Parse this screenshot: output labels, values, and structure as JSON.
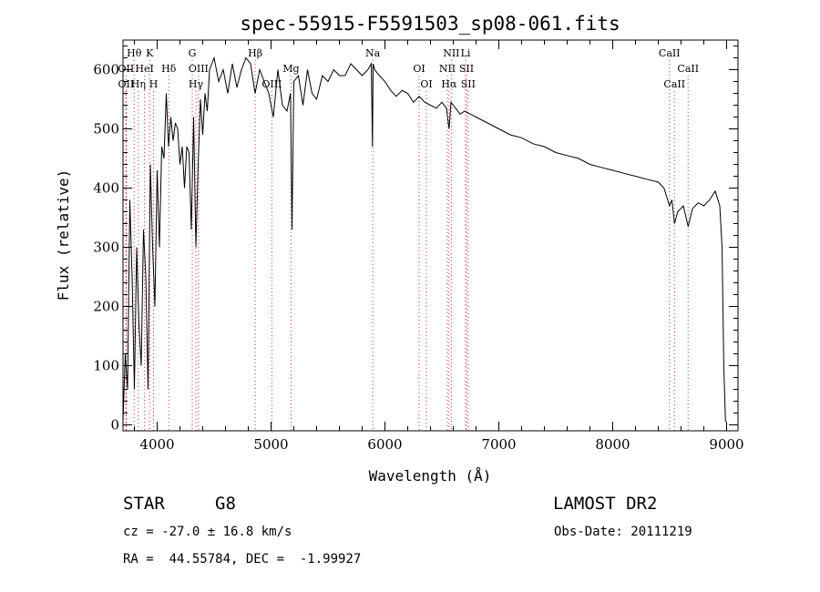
{
  "chart_data": {
    "type": "line",
    "title": "spec-55915-F5591503_sp08-061.fits",
    "xlabel": "Wavelength (Å)",
    "ylabel": "Flux (relative)",
    "xlim": [
      3700,
      9100
    ],
    "ylim": [
      -10,
      650
    ],
    "x_ticks": [
      4000,
      5000,
      6000,
      7000,
      8000,
      9000
    ],
    "y_ticks": [
      0,
      100,
      200,
      300,
      400,
      500,
      600
    ],
    "grid": false,
    "series": [
      {
        "x": [
          3700,
          3720,
          3740,
          3760,
          3780,
          3800,
          3820,
          3840,
          3860,
          3880,
          3900,
          3920,
          3940,
          3960,
          3980,
          4000,
          4020,
          4040,
          4060,
          4080,
          4100,
          4120,
          4140,
          4160,
          4180,
          4200,
          4220,
          4240,
          4260,
          4280,
          4300,
          4320,
          4340,
          4360,
          4380,
          4400,
          4420,
          4440,
          4460,
          4480,
          4500,
          4540,
          4580,
          4620,
          4660,
          4700,
          4740,
          4780,
          4820,
          4860,
          4900,
          4940,
          4980,
          5020,
          5060,
          5100,
          5140,
          5170,
          5184,
          5200,
          5240,
          5280,
          5320,
          5360,
          5400,
          5450,
          5500,
          5550,
          5600,
          5650,
          5700,
          5750,
          5800,
          5850,
          5880,
          5890,
          5896,
          5910,
          5950,
          6000,
          6050,
          6100,
          6150,
          6200,
          6250,
          6300,
          6350,
          6400,
          6450,
          6500,
          6540,
          6563,
          6580,
          6620,
          6660,
          6700,
          6750,
          6800,
          6900,
          7000,
          7100,
          7200,
          7300,
          7400,
          7500,
          7600,
          7700,
          7800,
          7900,
          8000,
          8100,
          8200,
          8300,
          8400,
          8450,
          8498,
          8520,
          8542,
          8570,
          8620,
          8662,
          8700,
          8750,
          8800,
          8850,
          8900,
          8940,
          8960,
          8975,
          8990
        ],
        "y": [
          5,
          120,
          60,
          380,
          250,
          60,
          300,
          170,
          100,
          330,
          250,
          60,
          440,
          300,
          200,
          430,
          300,
          470,
          450,
          560,
          470,
          520,
          480,
          510,
          500,
          440,
          470,
          400,
          470,
          460,
          330,
          520,
          300,
          440,
          550,
          490,
          560,
          530,
          600,
          610,
          620,
          580,
          600,
          560,
          610,
          570,
          600,
          620,
          610,
          560,
          600,
          580,
          560,
          520,
          600,
          540,
          530,
          560,
          330,
          580,
          590,
          540,
          600,
          560,
          550,
          590,
          580,
          600,
          590,
          590,
          610,
          600,
          590,
          600,
          610,
          470,
          610,
          600,
          590,
          580,
          565,
          555,
          565,
          560,
          545,
          555,
          545,
          540,
          535,
          545,
          535,
          500,
          545,
          535,
          525,
          530,
          525,
          520,
          510,
          500,
          490,
          485,
          475,
          470,
          460,
          455,
          450,
          440,
          435,
          430,
          425,
          420,
          415,
          410,
          400,
          370,
          380,
          340,
          360,
          370,
          335,
          365,
          375,
          370,
          380,
          395,
          370,
          300,
          100,
          5
        ]
      }
    ],
    "line_markers": [
      {
        "name": "Hθ",
        "x": 3798,
        "row": 0
      },
      {
        "name": "K",
        "x": 3934,
        "row": 0
      },
      {
        "name": "G",
        "x": 4308,
        "row": 0
      },
      {
        "name": "Hβ",
        "x": 4861,
        "row": 0
      },
      {
        "name": "Na",
        "x": 5893,
        "row": 0
      },
      {
        "name": "NII",
        "x": 6583,
        "row": 0
      },
      {
        "name": "Li",
        "x": 6708,
        "row": 0
      },
      {
        "name": "CaII",
        "x": 8498,
        "row": 0
      },
      {
        "name": "OII",
        "x": 3727,
        "row": 1
      },
      {
        "name": "HeI",
        "x": 3889,
        "row": 1
      },
      {
        "name": "Hδ",
        "x": 4102,
        "row": 1
      },
      {
        "name": "OIII",
        "x": 4363,
        "row": 1
      },
      {
        "name": "Mg",
        "x": 5175,
        "row": 1
      },
      {
        "name": "OI",
        "x": 6300,
        "row": 1
      },
      {
        "name": "NII",
        "x": 6548,
        "row": 1
      },
      {
        "name": "SII",
        "x": 6716,
        "row": 1
      },
      {
        "name": "CaII",
        "x": 8662,
        "row": 1
      },
      {
        "name": "OIII",
        "x": 5007,
        "row": 2
      },
      {
        "name": "OII",
        "x": 3727,
        "row": 2
      },
      {
        "name": "Hη",
        "x": 3835,
        "row": 2
      },
      {
        "name": "H",
        "x": 3968,
        "row": 2
      },
      {
        "name": "Hγ",
        "x": 4340,
        "row": 2
      },
      {
        "name": "OI",
        "x": 6364,
        "row": 2
      },
      {
        "name": "Hα",
        "x": 6563,
        "row": 2
      },
      {
        "name": "SII",
        "x": 6731,
        "row": 2
      },
      {
        "name": "CaII",
        "x": 8542,
        "row": 2
      }
    ]
  },
  "info": {
    "object_type": "STAR",
    "subclass": "G8",
    "survey": "LAMOST DR2",
    "cz": "cz = -27.0 ± 16.8 km/s",
    "obs_date": "Obs-Date: 20111219",
    "coords": "RA =  44.55784, DEC =  -1.99927"
  }
}
